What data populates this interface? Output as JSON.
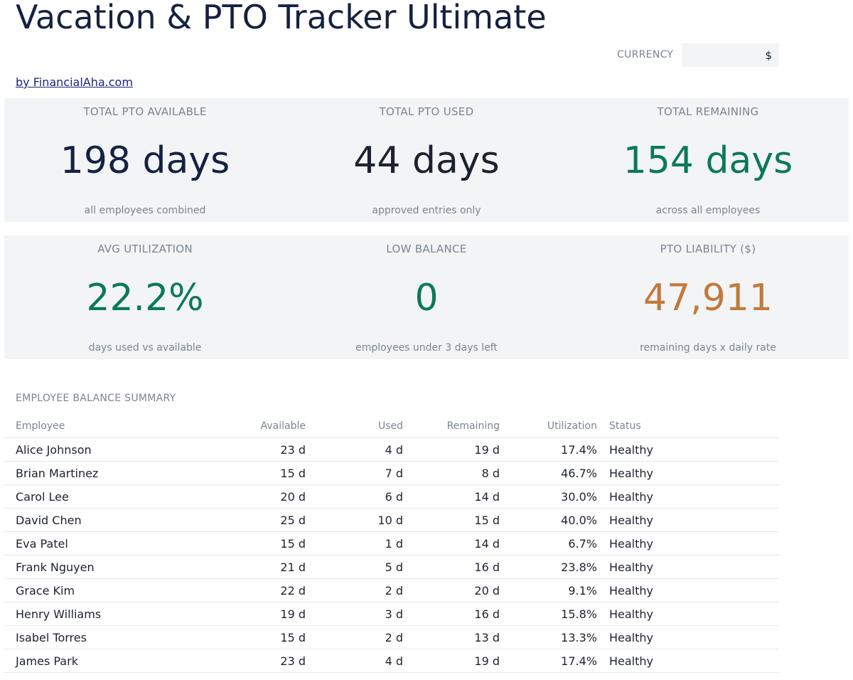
{
  "header": {
    "title": "Vacation & PTO Tracker Ultimate",
    "currency_label": "CURRENCY",
    "currency_value": "$",
    "byline": "by FinancialAha.com"
  },
  "kpis": {
    "total_available": {
      "label": "TOTAL PTO AVAILABLE",
      "value": "198 days",
      "sub": "all employees combined"
    },
    "total_used": {
      "label": "TOTAL PTO USED",
      "value": "44 days",
      "sub": "approved entries only"
    },
    "total_remaining": {
      "label": "TOTAL REMAINING",
      "value": "154 days",
      "sub": "across all employees"
    },
    "avg_utilization": {
      "label": "AVG UTILIZATION",
      "value": "22.2%",
      "sub": "days used vs available"
    },
    "low_balance": {
      "label": "LOW BALANCE",
      "value": "0",
      "sub": "employees under 3 days left"
    },
    "pto_liability": {
      "label": "PTO LIABILITY ($)",
      "value": "47,911",
      "sub": "remaining days x daily rate"
    }
  },
  "colors": {
    "title": "#152140",
    "green": "#0b7a55",
    "orange": "#c17a3c",
    "muted": "#7b8492",
    "panel": "#f2f4f6"
  },
  "summary": {
    "title": "EMPLOYEE BALANCE SUMMARY",
    "columns": [
      "Employee",
      "Available",
      "Used",
      "Remaining",
      "Utilization",
      "Status"
    ],
    "rows": [
      [
        "Alice Johnson",
        "23 d",
        "4 d",
        "19 d",
        "17.4%",
        "Healthy"
      ],
      [
        "Brian Martinez",
        "15 d",
        "7 d",
        "8 d",
        "46.7%",
        "Healthy"
      ],
      [
        "Carol Lee",
        "20 d",
        "6 d",
        "14 d",
        "30.0%",
        "Healthy"
      ],
      [
        "David Chen",
        "25 d",
        "10 d",
        "15 d",
        "40.0%",
        "Healthy"
      ],
      [
        "Eva Patel",
        "15 d",
        "1 d",
        "14 d",
        "6.7%",
        "Healthy"
      ],
      [
        "Frank Nguyen",
        "21 d",
        "5 d",
        "16 d",
        "23.8%",
        "Healthy"
      ],
      [
        "Grace Kim",
        "22 d",
        "2 d",
        "20 d",
        "9.1%",
        "Healthy"
      ],
      [
        "Henry Williams",
        "19 d",
        "3 d",
        "16 d",
        "15.8%",
        "Healthy"
      ],
      [
        "Isabel Torres",
        "15 d",
        "2 d",
        "13 d",
        "13.3%",
        "Healthy"
      ],
      [
        "James Park",
        "23 d",
        "4 d",
        "19 d",
        "17.4%",
        "Healthy"
      ]
    ]
  }
}
